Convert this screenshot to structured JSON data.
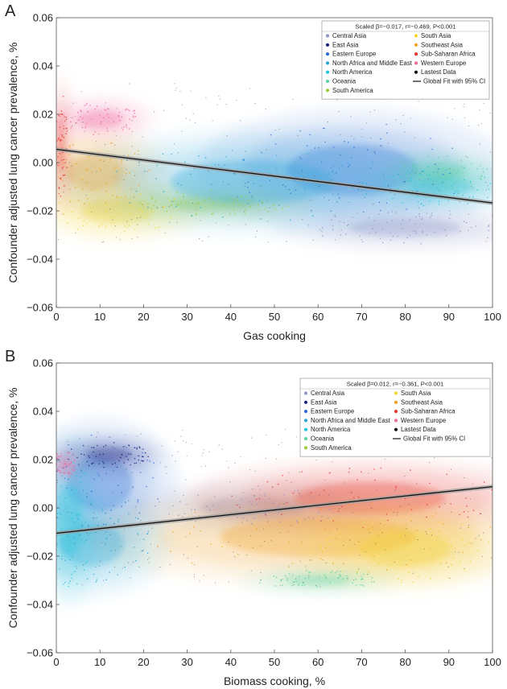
{
  "chart_data": [
    {
      "panel_label": "A",
      "type": "scatter",
      "xlabel": "Gas cooking",
      "ylabel": "Confounder adjusted lung cancer prevalence, %",
      "xlim": [
        0,
        100
      ],
      "ylim": [
        -0.06,
        0.06
      ],
      "x_ticks": [
        "0",
        "10",
        "20",
        "30",
        "40",
        "50",
        "60",
        "70",
        "80",
        "90",
        "100"
      ],
      "y_ticks": [
        "−0.06",
        "−0.04",
        "−0.02",
        "0.00",
        "0.02",
        "0.04",
        "0.06"
      ],
      "legend_title": "Scaled β=−0.017, r=−0.469, P<0.001",
      "legend_position": "top-right",
      "legend_left": [
        {
          "label": "Central Asia",
          "color": "#8f97c9"
        },
        {
          "label": "East Asia",
          "color": "#1a237e"
        },
        {
          "label": "Eastern Europe",
          "color": "#2f6fd6"
        },
        {
          "label": "North Africa and Middle East",
          "color": "#2aa7d8"
        },
        {
          "label": "North America",
          "color": "#26c6da"
        },
        {
          "label": "Oceania",
          "color": "#5fd3a0"
        },
        {
          "label": "South America",
          "color": "#9ccc3a"
        }
      ],
      "legend_right": [
        {
          "label": "South Asia",
          "color": "#f2d42a"
        },
        {
          "label": "Southeast Asia",
          "color": "#f0a020"
        },
        {
          "label": "Sub-Saharan Africa",
          "color": "#e53935"
        },
        {
          "label": "Western Europe",
          "color": "#f06aa0"
        },
        {
          "label": "Lastest Data",
          "color": "#111111"
        },
        {
          "label": "Global Fit with 95% CI",
          "color": "#111111",
          "line": true
        }
      ],
      "fit_line": {
        "x": [
          0,
          100
        ],
        "y": [
          0.0055,
          -0.0167
        ]
      },
      "density_regions": [
        {
          "region": "Eastern Europe",
          "color": "#2f6fd6",
          "cx": 68,
          "cy": -0.003,
          "rx": 20,
          "ry": 0.014
        },
        {
          "region": "North America",
          "color": "#26c6da",
          "cx": 88,
          "cy": -0.01,
          "rx": 10,
          "ry": 0.006
        },
        {
          "region": "Central Asia",
          "color": "#8f97c9",
          "cx": 80,
          "cy": -0.027,
          "rx": 17,
          "ry": 0.005
        },
        {
          "region": "South Asia",
          "color": "#f2d42a",
          "cx": 14,
          "cy": -0.02,
          "rx": 11,
          "ry": 0.007
        },
        {
          "region": "Southeast Asia",
          "color": "#f0a020",
          "cx": 9,
          "cy": -0.004,
          "rx": 9,
          "ry": 0.01
        },
        {
          "region": "Western Europe",
          "color": "#f06aa0",
          "cx": 10,
          "cy": 0.018,
          "rx": 7,
          "ry": 0.005
        },
        {
          "region": "South America",
          "color": "#9ccc3a",
          "cx": 36,
          "cy": -0.017,
          "rx": 13,
          "ry": 0.004
        },
        {
          "region": "Oceania",
          "color": "#5fd3a0",
          "cx": 88,
          "cy": -0.004,
          "rx": 8,
          "ry": 0.005
        },
        {
          "region": "North Africa and Middle East",
          "color": "#2aa7d8",
          "cx": 45,
          "cy": -0.008,
          "rx": 25,
          "ry": 0.012
        },
        {
          "region": "Sub-Saharan Africa",
          "color": "#e53935",
          "cx": 1,
          "cy": 0.008,
          "rx": 1.2,
          "ry": 0.016
        }
      ]
    },
    {
      "panel_label": "B",
      "type": "scatter",
      "xlabel": "Biomass cooking, %",
      "ylabel": "Confounder adjusted lung cancer prevalence, %",
      "xlim": [
        0,
        100
      ],
      "ylim": [
        -0.06,
        0.06
      ],
      "x_ticks": [
        "0",
        "10",
        "20",
        "30",
        "40",
        "50",
        "60",
        "70",
        "80",
        "90",
        "100"
      ],
      "y_ticks": [
        "−0.06",
        "−0.04",
        "−0.02",
        "0.00",
        "0.02",
        "0.04",
        "0.06"
      ],
      "legend_title": "Scaled β=0.012, r=−0.361, P<0.001",
      "legend_position": "top-right",
      "legend_left": [
        {
          "label": "Central Asia",
          "color": "#8f97c9"
        },
        {
          "label": "East Asia",
          "color": "#1a237e"
        },
        {
          "label": "Eastern Europe",
          "color": "#2f6fd6"
        },
        {
          "label": "North Africa and Middle East",
          "color": "#2aa7d8"
        },
        {
          "label": "North America",
          "color": "#26c6da"
        },
        {
          "label": "Oceania",
          "color": "#5fd3a0"
        },
        {
          "label": "South America",
          "color": "#9ccc3a"
        }
      ],
      "legend_right": [
        {
          "label": "South Asia",
          "color": "#f2d42a"
        },
        {
          "label": "Southeast Asia",
          "color": "#f0a020"
        },
        {
          "label": "Sub-Saharan Africa",
          "color": "#e53935"
        },
        {
          "label": "Western Europe",
          "color": "#f06aa0"
        },
        {
          "label": "Lastest Data",
          "color": "#111111"
        },
        {
          "label": "Global Fit with 95% CI",
          "color": "#111111",
          "line": true
        }
      ],
      "fit_line": {
        "x": [
          0,
          100
        ],
        "y": [
          -0.0105,
          0.0088
        ]
      },
      "density_regions": [
        {
          "region": "Eastern Europe",
          "color": "#2f6fd6",
          "cx": 10,
          "cy": 0.01,
          "rx": 10,
          "ry": 0.015
        },
        {
          "region": "East Asia",
          "color": "#1a237e",
          "cx": 12,
          "cy": 0.022,
          "rx": 7,
          "ry": 0.004
        },
        {
          "region": "Central Asia",
          "color": "#8f97c9",
          "cx": 45,
          "cy": 0.0,
          "rx": 16,
          "ry": 0.006
        },
        {
          "region": "Sub-Saharan Africa",
          "color": "#e53935",
          "cx": 72,
          "cy": 0.004,
          "rx": 23,
          "ry": 0.009
        },
        {
          "region": "Southeast Asia",
          "color": "#f0a020",
          "cx": 60,
          "cy": -0.012,
          "rx": 30,
          "ry": 0.011
        },
        {
          "region": "South Asia",
          "color": "#f2d42a",
          "cx": 80,
          "cy": -0.017,
          "rx": 14,
          "ry": 0.01
        },
        {
          "region": "Oceania",
          "color": "#5fd3a0",
          "cx": 60,
          "cy": -0.03,
          "rx": 10,
          "ry": 0.003
        },
        {
          "region": "North Africa and Middle East",
          "color": "#2aa7d8",
          "cx": 8,
          "cy": -0.015,
          "rx": 10,
          "ry": 0.012
        },
        {
          "region": "North America",
          "color": "#26c6da",
          "cx": 3,
          "cy": -0.005,
          "rx": 4,
          "ry": 0.02
        },
        {
          "region": "Western Europe",
          "color": "#f06aa0",
          "cx": 2,
          "cy": 0.018,
          "rx": 2,
          "ry": 0.004
        }
      ]
    }
  ]
}
